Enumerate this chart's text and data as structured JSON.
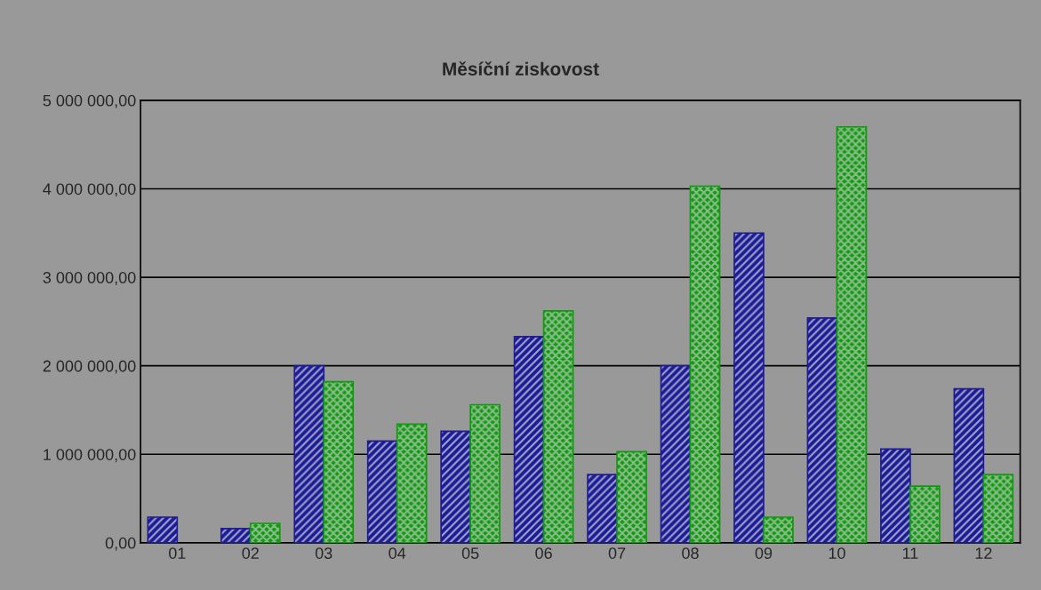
{
  "chart_data": {
    "type": "bar",
    "title": "Měsíční ziskovost",
    "categories": [
      "01",
      "02",
      "03",
      "04",
      "05",
      "06",
      "07",
      "08",
      "09",
      "10",
      "11",
      "12"
    ],
    "series": [
      {
        "color": "#1c1c96",
        "values": [
          290000,
          160000,
          2000000,
          1150000,
          1260000,
          2330000,
          770000,
          2000000,
          3500000,
          2540000,
          1060000,
          1740000
        ]
      },
      {
        "color": "#119911",
        "values": [
          null,
          220000,
          1820000,
          1340000,
          1560000,
          2620000,
          1030000,
          4030000,
          290000,
          4700000,
          640000,
          770000
        ]
      }
    ],
    "ylim": [
      0,
      5000000
    ],
    "yticks": [
      {
        "value": 0,
        "label": "0,00"
      },
      {
        "value": 1000000,
        "label": "1 000 000,00"
      },
      {
        "value": 2000000,
        "label": "2 000 000,00"
      },
      {
        "value": 3000000,
        "label": "3 000 000,00"
      },
      {
        "value": 4000000,
        "label": "4 000 000,00"
      },
      {
        "value": 5000000,
        "label": "5 000 000,00"
      }
    ],
    "grid": "y",
    "legend": false
  }
}
